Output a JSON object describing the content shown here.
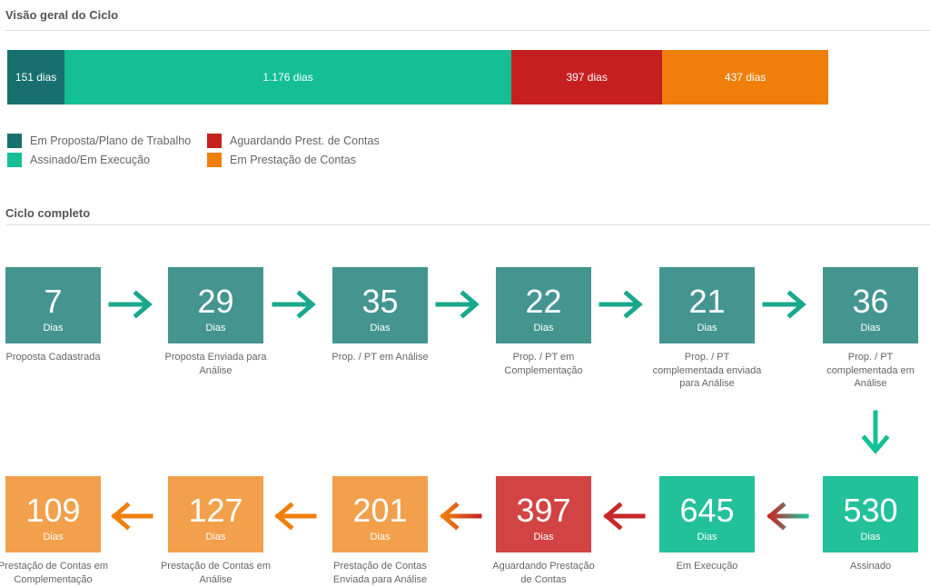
{
  "overview": {
    "title": "Visão geral do Ciclo",
    "type": "stacked-bar",
    "values": [
      151,
      1176,
      397,
      437
    ],
    "value_labels": [
      "151 dias",
      "1.176 dias",
      "397 dias",
      "437 dias"
    ],
    "series": [
      {
        "name": "Em Proposta/Plano de Trabalho",
        "color": "#17706f"
      },
      {
        "name": "Assinado/Em Execução",
        "color": "#14bf96"
      },
      {
        "name": "Aguardando Prest. de Contas",
        "color": "#c61f1f"
      },
      {
        "name": "Em Prestação de Contas",
        "color": "#ef7f0a"
      }
    ]
  },
  "cycle": {
    "title": "Ciclo completo",
    "unit": "Dias",
    "steps": [
      {
        "value": 7,
        "label": "Proposta Cadastrada",
        "color": "#44958f"
      },
      {
        "value": 29,
        "label": "Proposta Enviada para Análise",
        "color": "#44958f"
      },
      {
        "value": 35,
        "label": "Prop. / PT em Análise",
        "color": "#44958f"
      },
      {
        "value": 22,
        "label": "Prop. / PT em Complementação",
        "color": "#44958f"
      },
      {
        "value": 21,
        "label": "Prop. / PT complementada enviada para Análise",
        "color": "#44958f"
      },
      {
        "value": 36,
        "label": "Prop. / PT complementada em Análise",
        "color": "#44958f"
      },
      {
        "value": 530,
        "label": "Assinado",
        "color": "#22c19a"
      },
      {
        "value": 645,
        "label": "Em Execução",
        "color": "#22c19a"
      },
      {
        "value": 397,
        "label": "Aguardando Prestação de Contas",
        "color": "#d24443"
      },
      {
        "value": 201,
        "label": "Prestação de Contas Enviada para Análise",
        "color": "#f2a04c"
      },
      {
        "value": 127,
        "label": "Prestação de Contas em Análise",
        "color": "#f2a04c"
      },
      {
        "value": 109,
        "label": "Prestação de Contas em Complementação",
        "color": "#f2a04c"
      }
    ]
  }
}
